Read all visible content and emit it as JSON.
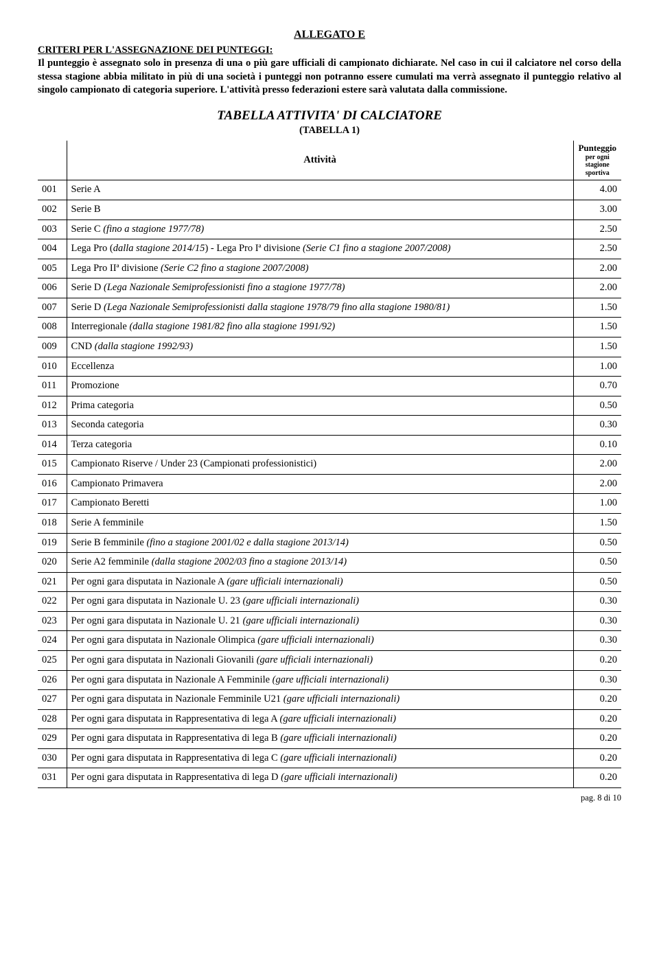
{
  "header": {
    "allegato": "ALLEGATO E",
    "criteri_heading": "CRITERI PER L'ASSEGNAZIONE DEI PUNTEGGI:",
    "intro": "Il punteggio è assegnato solo in presenza di una o più gare ufficiali di campionato dichiarate. Nel caso in cui il calciatore nel corso della stessa stagione abbia militato in più di una società i punteggi non potranno essere cumulati ma verrà assegnato il punteggio relativo al singolo campionato di categoria superiore. L'attività presso federazioni estere sarà valutata dalla commissione."
  },
  "table": {
    "title": "TABELLA ATTIVITA' DI CALCIATORE",
    "subtitle": "(TABELLA 1)",
    "header_activity": "Attività",
    "header_score_main": "Punteggio",
    "header_score_sub": "per ogni stagione sportiva",
    "rows": [
      {
        "code": "001",
        "activity": "Serie A",
        "score": "4.00"
      },
      {
        "code": "002",
        "activity": "Serie B",
        "score": "3.00"
      },
      {
        "code": "003",
        "activity": "Serie C <em>(fino a stagione 1977/78)</em>",
        "score": "2.50"
      },
      {
        "code": "004",
        "activity": "Lega Pro (<em>dalla stagione 2014/15</em>) - Lega Pro Iª divisione <em>(Serie C1 fino a stagione 2007/2008)</em>",
        "score": "2.50"
      },
      {
        "code": "005",
        "activity": "Lega Pro IIª divisione <em>(Serie C2 fino a stagione 2007/2008)</em>",
        "score": "2.00"
      },
      {
        "code": "006",
        "activity": "Serie D <em>(Lega Nazionale Semiprofessionisti fino a stagione 1977/78)</em>",
        "score": "2.00"
      },
      {
        "code": "007",
        "activity": "Serie D <em>(Lega Nazionale Semiprofessionisti dalla stagione 1978/79 fino alla stagione 1980/81)</em>",
        "score": "1.50"
      },
      {
        "code": "008",
        "activity": "Interregionale <em>(dalla stagione 1981/82 fino alla stagione 1991/92)</em>",
        "score": "1.50"
      },
      {
        "code": "009",
        "activity": "CND <em>(dalla stagione 1992/93)</em>",
        "score": "1.50"
      },
      {
        "code": "010",
        "activity": "Eccellenza",
        "score": "1.00"
      },
      {
        "code": "011",
        "activity": "Promozione",
        "score": "0.70"
      },
      {
        "code": "012",
        "activity": "Prima categoria",
        "score": "0.50"
      },
      {
        "code": "013",
        "activity": "Seconda categoria",
        "score": "0.30"
      },
      {
        "code": "014",
        "activity": "Terza categoria",
        "score": "0.10"
      },
      {
        "code": "015",
        "activity": "Campionato Riserve / Under 23 (Campionati professionistici)",
        "score": "2.00"
      },
      {
        "code": "016",
        "activity": "Campionato Primavera",
        "score": "2.00"
      },
      {
        "code": "017",
        "activity": "Campionato Beretti",
        "score": "1.00"
      },
      {
        "code": "018",
        "activity": "Serie A femminile",
        "score": "1.50"
      },
      {
        "code": "019",
        "activity": "Serie B femminile <em>(fino a stagione 2001/02 e dalla stagione 2013/14)</em>",
        "score": "0.50"
      },
      {
        "code": "020",
        "activity": "Serie A2 femminile <em>(dalla stagione 2002/03 fino a stagione 2013/14)</em>",
        "score": "0.50"
      },
      {
        "code": "021",
        "activity": "Per ogni gara disputata in Nazionale A <em>(gare ufficiali internazionali)</em>",
        "score": "0.50"
      },
      {
        "code": "022",
        "activity": "Per ogni gara disputata in Nazionale U. 23 <em>(gare ufficiali internazionali)</em>",
        "score": "0.30"
      },
      {
        "code": "023",
        "activity": "Per ogni gara disputata in Nazionale U. 21 <em>(gare ufficiali internazionali)</em>",
        "score": "0.30"
      },
      {
        "code": "024",
        "activity": "Per ogni gara disputata in Nazionale Olimpica <em>(gare ufficiali internazionali)</em>",
        "score": "0.30"
      },
      {
        "code": "025",
        "activity": "Per ogni gara disputata in Nazionali Giovanili <em>(gare ufficiali internazionali)</em>",
        "score": "0.20"
      },
      {
        "code": "026",
        "activity": "Per ogni gara disputata in Nazionale A Femminile <em>(gare ufficiali internazionali)</em>",
        "score": "0.30"
      },
      {
        "code": "027",
        "activity": "Per ogni gara disputata in Nazionale Femminile U21 <em>(gare ufficiali internazionali)</em>",
        "score": "0.20"
      },
      {
        "code": "028",
        "activity": "Per ogni gara disputata in Rappresentativa di lega A <em>(gare ufficiali internazionali)</em>",
        "score": "0.20"
      },
      {
        "code": "029",
        "activity": "Per ogni gara disputata in Rappresentativa di lega B <em>(gare ufficiali internazionali)</em>",
        "score": "0.20"
      },
      {
        "code": "030",
        "activity": "Per ogni gara disputata in Rappresentativa di lega C <em>(gare ufficiali internazionali)</em>",
        "score": "0.20"
      },
      {
        "code": "031",
        "activity": "Per ogni gara disputata in Rappresentativa di lega D <em>(gare ufficiali internazionali)</em>",
        "score": "0.20"
      }
    ]
  },
  "footer": "pag. 8 di 10"
}
